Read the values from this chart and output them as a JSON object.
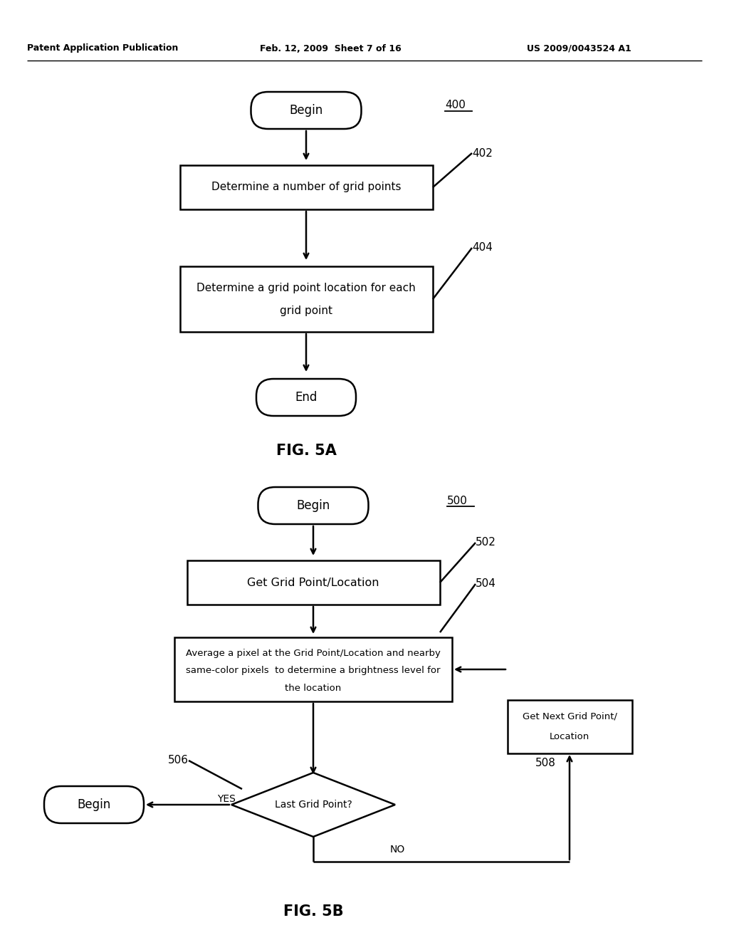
{
  "bg_color": "#ffffff",
  "header_left": "Patent Application Publication",
  "header_mid": "Feb. 12, 2009  Sheet 7 of 16",
  "header_right": "US 2009/0043524 A1",
  "fig5a_label": "FIG. 5A",
  "fig5b_label": "FIG. 5B",
  "fig5a_ref_400": "400",
  "fig5a_ref_402": "402",
  "fig5a_ref_404": "404",
  "fig5b_ref_500": "500",
  "fig5b_ref_502": "502",
  "fig5b_ref_504": "504",
  "fig5b_ref_506": "506",
  "fig5b_ref_508": "508",
  "node_color": "#ffffff",
  "node_edge_color": "#000000",
  "text_color": "#000000",
  "line_color": "#000000"
}
